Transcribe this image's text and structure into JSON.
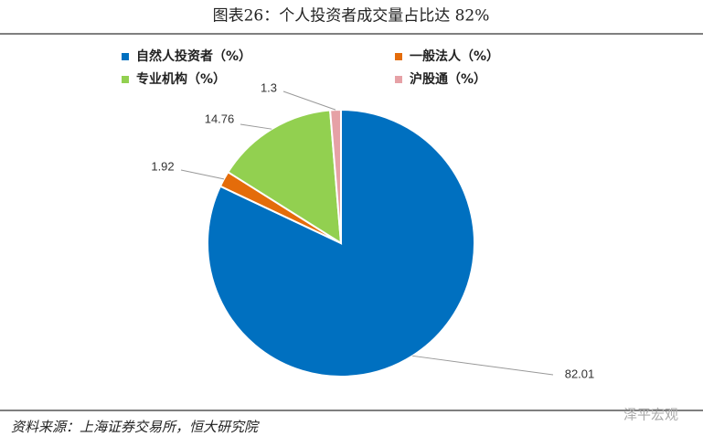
{
  "chart_data": {
    "type": "pie",
    "title": "图表26：个人投资者成交量占比达 82%",
    "categories": [
      "自然人投资者（%）",
      "一般法人（%）",
      "专业机构（%）",
      "沪股通（%）"
    ],
    "values": [
      82.01,
      1.92,
      14.76,
      1.3
    ],
    "colors": [
      "#0070c0",
      "#e46c0a",
      "#92d050",
      "#e6a1a6"
    ],
    "source": "资料来源：上海证券交易所，恒大研究院",
    "watermark": "泽平宏观"
  }
}
